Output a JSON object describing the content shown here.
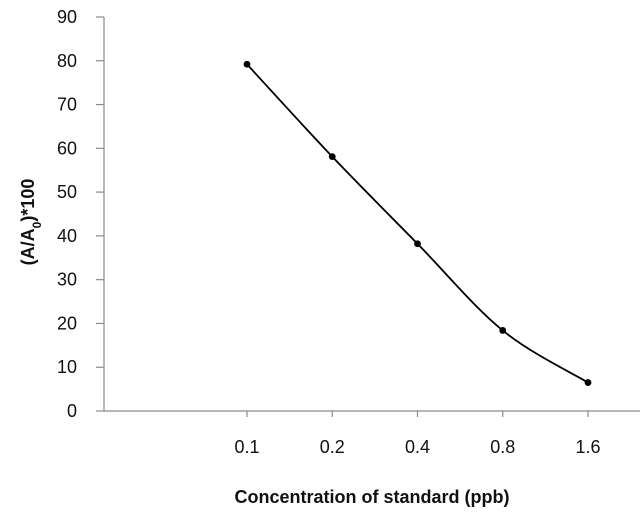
{
  "chart_data": {
    "type": "line",
    "categories": [
      "0.1",
      "0.2",
      "0.4",
      "0.8",
      "1.6"
    ],
    "series": [
      {
        "values": [
          79.2,
          58.1,
          38.2,
          18.4,
          6.5
        ],
        "color": "#000000"
      }
    ],
    "title": "",
    "xlabel": "Concentration of standard (ppb)",
    "ylabel": {
      "prefix": "(A/A",
      "subscript": "0",
      "suffix": ")*100"
    },
    "ylim": [
      0,
      90
    ],
    "yticks": [
      0,
      10,
      20,
      30,
      40,
      50,
      60,
      70,
      80,
      90
    ],
    "grid": false,
    "legend": false,
    "line_style": "smooth",
    "marker": "circle"
  }
}
